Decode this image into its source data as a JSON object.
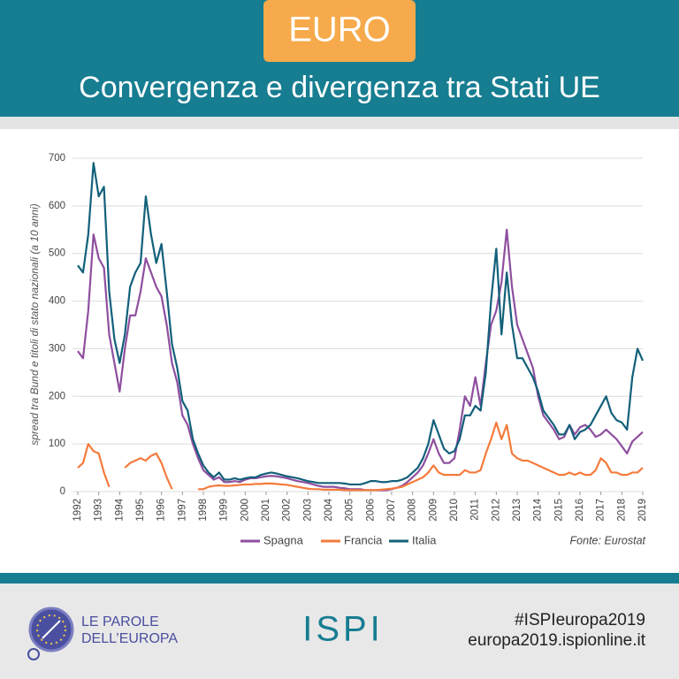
{
  "header": {
    "tag": "EURO",
    "title": "Convergenza e divergenza tra Stati UE"
  },
  "chart_data": {
    "type": "line",
    "ylabel": "spread tra Bund e titoli di stato nazionali (a 10 anni)",
    "source": "Fonte: Eurostat",
    "xlim": [
      1992,
      2019
    ],
    "ylim": [
      0,
      700
    ],
    "xticks": [
      1992,
      1993,
      1994,
      1995,
      1996,
      1997,
      1998,
      1999,
      2000,
      2001,
      2002,
      2003,
      2004,
      2005,
      2006,
      2007,
      2008,
      2009,
      2010,
      2011,
      2012,
      2013,
      2014,
      2015,
      2016,
      2017,
      2018,
      2019
    ],
    "yticks": [
      0,
      100,
      200,
      300,
      400,
      500,
      600,
      700
    ],
    "grid": true,
    "x": [
      1992,
      1992.25,
      1992.5,
      1992.75,
      1993,
      1993.25,
      1993.5,
      1993.75,
      1994,
      1994.25,
      1994.5,
      1994.75,
      1995,
      1995.25,
      1995.5,
      1995.75,
      1996,
      1996.25,
      1996.5,
      1996.75,
      1997,
      1997.25,
      1997.5,
      1997.75,
      1998,
      1998.25,
      1998.5,
      1998.75,
      1999,
      1999.25,
      1999.5,
      1999.75,
      2000,
      2000.25,
      2000.5,
      2000.75,
      2001,
      2001.25,
      2001.5,
      2001.75,
      2002,
      2002.25,
      2002.5,
      2002.75,
      2003,
      2003.25,
      2003.5,
      2003.75,
      2004,
      2004.25,
      2004.5,
      2004.75,
      2005,
      2005.25,
      2005.5,
      2005.75,
      2006,
      2006.25,
      2006.5,
      2006.75,
      2007,
      2007.25,
      2007.5,
      2007.75,
      2008,
      2008.25,
      2008.5,
      2008.75,
      2009,
      2009.25,
      2009.5,
      2009.75,
      2010,
      2010.25,
      2010.5,
      2010.75,
      2011,
      2011.25,
      2011.5,
      2011.75,
      2012,
      2012.25,
      2012.5,
      2012.75,
      2013,
      2013.25,
      2013.5,
      2013.75,
      2014,
      2014.25,
      2014.5,
      2014.75,
      2015,
      2015.25,
      2015.5,
      2015.75,
      2016,
      2016.25,
      2016.5,
      2016.75,
      2017,
      2017.25,
      2017.5,
      2017.75,
      2018,
      2018.25,
      2018.5,
      2018.75,
      2019
    ],
    "series": [
      {
        "name": "Spagna",
        "color": "#8e4f9f",
        "values": [
          295,
          280,
          380,
          540,
          490,
          470,
          330,
          270,
          210,
          300,
          370,
          370,
          420,
          490,
          460,
          430,
          410,
          350,
          270,
          230,
          160,
          140,
          100,
          70,
          45,
          35,
          25,
          30,
          20,
          20,
          22,
          20,
          25,
          28,
          28,
          30,
          32,
          33,
          32,
          30,
          28,
          25,
          22,
          20,
          18,
          15,
          12,
          10,
          10,
          10,
          8,
          7,
          5,
          5,
          5,
          3,
          3,
          3,
          3,
          3,
          5,
          8,
          12,
          20,
          30,
          40,
          55,
          80,
          110,
          80,
          60,
          60,
          70,
          130,
          200,
          180,
          240,
          180,
          270,
          350,
          380,
          440,
          550,
          430,
          350,
          320,
          290,
          260,
          200,
          160,
          145,
          130,
          110,
          115,
          140,
          120,
          135,
          140,
          130,
          115,
          120,
          130,
          120,
          110,
          95,
          80,
          105,
          115,
          125
        ]
      },
      {
        "name": "Francia",
        "color": "#f47b3c",
        "values": [
          50,
          60,
          100,
          85,
          80,
          40,
          10,
          null,
          null,
          50,
          60,
          65,
          70,
          65,
          75,
          80,
          60,
          30,
          5,
          null,
          null,
          null,
          null,
          5,
          5,
          10,
          12,
          13,
          12,
          12,
          13,
          14,
          15,
          15,
          16,
          16,
          17,
          17,
          16,
          15,
          14,
          12,
          10,
          8,
          6,
          5,
          5,
          4,
          4,
          4,
          4,
          3,
          3,
          3,
          3,
          3,
          3,
          3,
          4,
          5,
          6,
          8,
          10,
          15,
          20,
          25,
          30,
          40,
          55,
          40,
          35,
          35,
          35,
          35,
          45,
          40,
          40,
          45,
          80,
          110,
          145,
          110,
          140,
          80,
          70,
          65,
          65,
          60,
          55,
          50,
          45,
          40,
          35,
          35,
          40,
          35,
          40,
          35,
          35,
          45,
          70,
          60,
          40,
          40,
          35,
          35,
          40,
          40,
          50
        ]
      },
      {
        "name": "Italia",
        "color": "#12607a",
        "values": [
          475,
          460,
          540,
          690,
          620,
          640,
          420,
          320,
          270,
          330,
          430,
          460,
          480,
          620,
          540,
          480,
          520,
          420,
          310,
          260,
          190,
          170,
          110,
          80,
          55,
          40,
          30,
          40,
          25,
          25,
          28,
          25,
          28,
          30,
          30,
          35,
          38,
          40,
          38,
          35,
          32,
          30,
          28,
          25,
          22,
          20,
          18,
          18,
          18,
          18,
          18,
          17,
          15,
          15,
          15,
          18,
          22,
          22,
          20,
          20,
          22,
          22,
          25,
          30,
          40,
          50,
          70,
          100,
          150,
          120,
          90,
          80,
          85,
          110,
          160,
          160,
          180,
          170,
          250,
          400,
          510,
          330,
          460,
          350,
          280,
          280,
          260,
          240,
          210,
          170,
          155,
          140,
          120,
          120,
          140,
          110,
          125,
          130,
          140,
          160,
          180,
          200,
          165,
          150,
          145,
          130,
          240,
          300,
          275
        ]
      }
    ]
  },
  "footer": {
    "brand": [
      "LE PAROLE",
      "DELL’EUROPA"
    ],
    "logo": "ISPI",
    "hashtag": "#ISPIeuropa2019",
    "url": "europa2019.ispionline.it"
  }
}
